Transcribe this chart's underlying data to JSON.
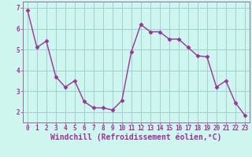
{
  "x": [
    0,
    1,
    2,
    3,
    4,
    5,
    6,
    7,
    8,
    9,
    10,
    11,
    12,
    13,
    14,
    15,
    16,
    17,
    18,
    19,
    20,
    21,
    22,
    23
  ],
  "y": [
    6.9,
    5.1,
    5.4,
    3.7,
    3.2,
    3.5,
    2.5,
    2.2,
    2.2,
    2.1,
    2.55,
    4.9,
    6.2,
    5.85,
    5.85,
    5.5,
    5.5,
    5.1,
    4.7,
    4.65,
    3.2,
    3.5,
    2.45,
    1.85
  ],
  "line_color": "#993399",
  "marker": "D",
  "marker_size": 2.5,
  "bg_color": "#cef5ee",
  "grid_color": "#99cccc",
  "axis_color": "#993399",
  "spine_color": "#996699",
  "xlabel": "Windchill (Refroidissement éolien,°C)",
  "xlim": [
    -0.5,
    23.5
  ],
  "ylim": [
    1.5,
    7.3
  ],
  "yticks": [
    2,
    3,
    4,
    5,
    6,
    7
  ],
  "xticks": [
    0,
    1,
    2,
    3,
    4,
    5,
    6,
    7,
    8,
    9,
    10,
    11,
    12,
    13,
    14,
    15,
    16,
    17,
    18,
    19,
    20,
    21,
    22,
    23
  ],
  "tick_label_fontsize": 5.5,
  "xlabel_fontsize": 7.0,
  "line_width": 1.0
}
